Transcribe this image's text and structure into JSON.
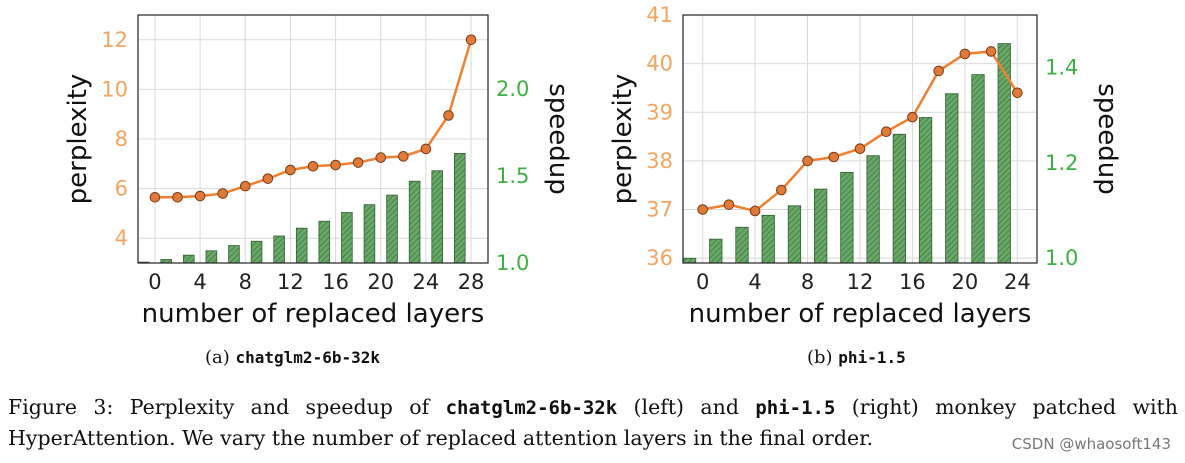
{
  "chart_data": [
    {
      "type": "bar+line",
      "subplot_label": "(a)",
      "model_name": "chatglm2-6b-32k",
      "xlabel": "number of replaced layers",
      "ylabel_left": "perplexity",
      "ylabel_right": "speedup",
      "x_ticks": [
        0,
        4,
        8,
        12,
        16,
        20,
        24,
        28
      ],
      "y_left_ticks": [
        4,
        6,
        8,
        10,
        12
      ],
      "y_right_ticks": [
        "1.0",
        "1.5",
        "2.0"
      ],
      "xlim": [
        -1.5,
        29.5
      ],
      "ylim_left": [
        3.0,
        13.0
      ],
      "ylim_right": [
        1.0,
        2.425
      ],
      "grid": true,
      "left_axis_color": "#f4a460",
      "right_axis_color": "#3cb043",
      "line_color": "#f08030",
      "bar_color": "#5a9e5a",
      "series": [
        {
          "name": "perplexity",
          "kind": "line",
          "axis": "left",
          "x": [
            0,
            2,
            4,
            6,
            8,
            10,
            12,
            14,
            16,
            18,
            20,
            22,
            24,
            26,
            28
          ],
          "values": [
            5.65,
            5.65,
            5.7,
            5.8,
            6.1,
            6.4,
            6.75,
            6.9,
            6.95,
            7.05,
            7.25,
            7.3,
            7.6,
            8.95,
            12.0
          ]
        },
        {
          "name": "speedup",
          "kind": "bar",
          "axis": "right",
          "x": [
            -1,
            1,
            3,
            5,
            7,
            9,
            11,
            13,
            15,
            17,
            19,
            21,
            23,
            25,
            27
          ],
          "values": [
            1.005,
            1.02,
            1.045,
            1.07,
            1.1,
            1.125,
            1.155,
            1.2,
            1.24,
            1.29,
            1.335,
            1.39,
            1.47,
            1.53,
            1.63
          ]
        }
      ]
    },
    {
      "type": "bar+line",
      "subplot_label": "(b)",
      "model_name": "phi-1.5",
      "xlabel": "number of replaced layers",
      "ylabel_left": "perplexity",
      "ylabel_right": "speedup",
      "x_ticks": [
        0,
        4,
        8,
        12,
        16,
        20,
        24
      ],
      "y_left_ticks": [
        36,
        37,
        38,
        39,
        40,
        41
      ],
      "y_right_ticks": [
        "1.0",
        "1.2",
        "1.4"
      ],
      "xlim": [
        -1.5,
        25.5
      ],
      "ylim_left": [
        35.9,
        41.0
      ],
      "ylim_right": [
        0.99,
        1.51
      ],
      "grid": true,
      "left_axis_color": "#f4a460",
      "right_axis_color": "#3cb043",
      "line_color": "#f08030",
      "bar_color": "#5a9e5a",
      "series": [
        {
          "name": "perplexity",
          "kind": "line",
          "axis": "left",
          "x": [
            0,
            2,
            4,
            6,
            8,
            10,
            12,
            14,
            16,
            18,
            20,
            22,
            24
          ],
          "values": [
            37.0,
            37.1,
            36.97,
            37.4,
            38.0,
            38.08,
            38.25,
            38.6,
            38.9,
            39.85,
            40.2,
            40.25,
            39.4
          ]
        },
        {
          "name": "speedup",
          "kind": "bar",
          "axis": "right",
          "x": [
            -1,
            1,
            3,
            5,
            7,
            9,
            11,
            13,
            15,
            17,
            19,
            21,
            23
          ],
          "values": [
            1.0,
            1.04,
            1.065,
            1.09,
            1.11,
            1.145,
            1.18,
            1.215,
            1.26,
            1.295,
            1.345,
            1.385,
            1.45
          ]
        }
      ]
    }
  ],
  "captions": {
    "a_prefix": "(a) ",
    "a_model": "chatglm2-6b-32k",
    "b_prefix": "(b) ",
    "b_model": "phi-1.5"
  },
  "figure_caption": {
    "part1": "Figure 3: Perplexity and speedup of ",
    "model_a": "chatglm2-6b-32k",
    "part2": " (left) and ",
    "model_b": "phi-1.5",
    "part3": " (right) monkey patched with HyperAttention. We vary the number of replaced attention layers in the final order."
  },
  "watermark": "CSDN @whaosoft143"
}
